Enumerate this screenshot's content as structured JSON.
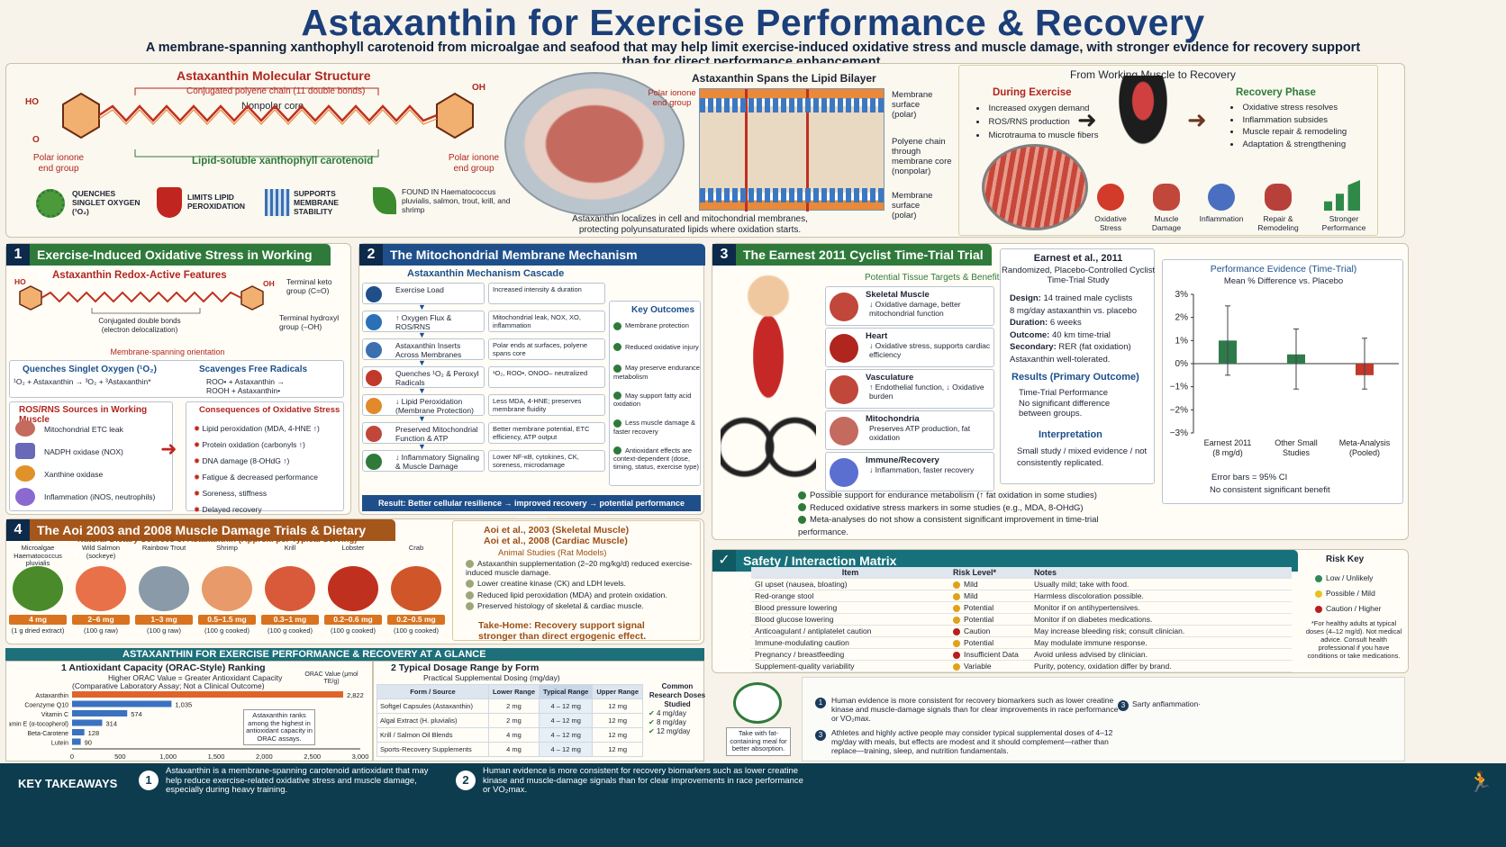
{
  "title": "Astaxanthin for Exercise Performance & Recovery",
  "subtitle": "A membrane-spanning xanthophyll carotenoid from microalgae and seafood that may help limit exercise-induced oxidative stress and muscle damage, with stronger evidence for recovery support than for direct performance enhancement.",
  "structure": {
    "heading": "Astaxanthin Molecular Structure",
    "polyene": "Conjugated polyene chain (11 double bonds)",
    "core": "Nonpolar core",
    "lipid": "Lipid-soluble xanthophyll carotenoid",
    "left_end": "Polar ionone end group",
    "right_end": "Polar ionone end group",
    "ho": "HO",
    "oh": "OH",
    "o": "O",
    "features": [
      {
        "label": "QUENCHES SINGLET OXYGEN (¹O₂)",
        "icon": "oxygen-icon"
      },
      {
        "label": "LIMITS LIPID PEROXIDATION",
        "icon": "shield-icon"
      },
      {
        "label": "SUPPORTS MEMBRANE STABILITY",
        "icon": "membrane-icon"
      },
      {
        "label": "FOUND IN Haematococcus pluvialis, salmon, trout, krill, and shrimp",
        "icon": "leaf-icon"
      }
    ]
  },
  "bilayer": {
    "heading": "Astaxanthin Spans the Lipid Bilayer",
    "end_group": "Polar ionone end group",
    "labels": [
      "Membrane surface (polar)",
      "Polyene chain through membrane core (nonpolar)",
      "Membrane surface (polar)"
    ],
    "caption": "Astaxanthin localizes in cell and mitochondrial membranes, protecting polyunsaturated lipids where oxidation starts."
  },
  "recovery_flow": {
    "heading": "From Working Muscle to Recovery",
    "during_title": "During Exercise",
    "during": [
      "Increased oxygen demand",
      "ROS/RNS production",
      "Microtrauma to muscle fibers"
    ],
    "phase_title": "Recovery Phase",
    "phase": [
      "Oxidative stress resolves",
      "Inflammation subsides",
      "Muscle repair & remodeling",
      "Adaptation & strengthening"
    ],
    "steps": [
      "Oxidative Stress",
      "Muscle Damage",
      "Inflammation",
      "Repair & Remodeling",
      "Stronger Performance"
    ]
  },
  "section1": {
    "num": "1",
    "title": "Exercise-Induced Oxidative Stress in Working Muscle",
    "features_title": "Astaxanthin Redox-Active Features",
    "terminal_keto": "Terminal keto group (C=O)",
    "terminal_hydroxyl": "Terminal hydroxyl group (–OH)",
    "conjugated": "Conjugated double bonds (electron delocalization)",
    "orientation": "Membrane-spanning orientation",
    "quench_title": "Quenches Singlet Oxygen (¹O₂)",
    "quench_eq": "¹O₂ + Astaxanthin → ³O₂ + ³Astaxanthin*",
    "scav_title": "Scavenges Free Radicals",
    "scav_eq1": "ROO• + Astaxanthin →",
    "scav_eq2": "ROOH + Astaxanthin•",
    "sources_title": "ROS/RNS Sources in Working Muscle",
    "sources": [
      "Mitochondrial ETC leak",
      "NADPH oxidase (NOX)",
      "Xanthine oxidase",
      "Inflammation (iNOS, neutrophils)"
    ],
    "conseq_title": "Consequences of Oxidative Stress",
    "conseq": [
      "Lipid peroxidation (MDA, 4-HNE ↑)",
      "Protein oxidation (carbonyls ↑)",
      "DNA damage (8-OHdG ↑)",
      "Fatigue & decreased performance",
      "Soreness, stiffness",
      "Delayed recovery"
    ]
  },
  "section2": {
    "num": "2",
    "title": "The Mitochondrial Membrane Mechanism",
    "cascade_title": "Astaxanthin Mechanism Cascade",
    "steps": [
      {
        "label": "Exercise Load",
        "detail": "Increased intensity & duration"
      },
      {
        "label": "↑ Oxygen Flux & ROS/RNS",
        "detail": "Mitochondrial leak, NOX, XO, inflammation"
      },
      {
        "label": "Astaxanthin Inserts Across Membranes",
        "detail": "Polar ends at surfaces, polyene spans core"
      },
      {
        "label": "Quenches ¹O₂ & Peroxyl Radicals",
        "detail": "¹O₂, ROO•, ONOO– neutralized"
      },
      {
        "label": "↓ Lipid Peroxidation (Membrane Protection)",
        "detail": "Less MDA, 4-HNE; preserves membrane fluidity"
      },
      {
        "label": "Preserved Mitochondrial Function & ATP",
        "detail": "Better membrane potential, ETC efficiency, ATP output"
      },
      {
        "label": "↓ Inflammatory Signaling & Muscle Damage",
        "detail": "Lower NF-κB, cytokines, CK, soreness, microdamage"
      }
    ],
    "outcomes_title": "Key Outcomes",
    "outcomes": [
      "Membrane protection",
      "Reduced oxidative injury",
      "May preserve endurance metabolism",
      "May support fatty acid oxidation",
      "Less muscle damage & faster recovery",
      "Antioxidant effects are context-dependent (dose, timing, status, exercise type)"
    ],
    "result": "Result: Better cellular resilience → improved recovery → potential performance support"
  },
  "section3": {
    "num": "3",
    "title": "The Earnest 2011 Cyclist Time-Trial Trial",
    "targets_title": "Potential Tissue Targets & Benefits",
    "targets": [
      {
        "name": "Skeletal Muscle",
        "desc": "↓ Oxidative damage, better mitochondrial function"
      },
      {
        "name": "Heart",
        "desc": "↓ Oxidative stress, supports cardiac efficiency"
      },
      {
        "name": "Vasculature",
        "desc": "↑ Endothelial function, ↓ Oxidative burden"
      },
      {
        "name": "Mitochondria",
        "desc": "Preserves ATP production, fat oxidation"
      },
      {
        "name": "Immune/Recovery",
        "desc": "↓ Inflammation, faster recovery"
      }
    ],
    "study_title": "Earnest et al., 2011",
    "study_sub": "Randomized, Placebo-Controlled Cyclist Time-Trial Study",
    "design": [
      {
        "k": "Design:",
        "v": "14 trained male cyclists"
      },
      {
        "k": "",
        "v": "8 mg/day astaxanthin vs. placebo"
      },
      {
        "k": "Duration:",
        "v": "6 weeks"
      },
      {
        "k": "Outcome:",
        "v": "40 km time-trial"
      },
      {
        "k": "Secondary:",
        "v": "RER (fat oxidation)"
      },
      {
        "k": "",
        "v": "Astaxanthin well-tolerated."
      }
    ],
    "results_title": "Results (Primary Outcome)",
    "results_sub": "Time-Trial Performance",
    "results_text": "No significant difference between groups.",
    "interp_title": "Interpretation",
    "interp_text": "Small study / mixed evidence / not consistently replicated.",
    "notes": [
      "Possible support for endurance metabolism (↑ fat oxidation in some studies)",
      "Reduced oxidative stress markers in some studies (e.g., MDA, 8-OHdG)",
      "Meta-analyses do not show a consistent significant improvement in time-trial performance."
    ]
  },
  "chart_data": {
    "type": "bar",
    "title": "Performance Evidence (Time-Trial)",
    "subtitle": "Mean % Difference vs. Placebo",
    "categories": [
      "Earnest 2011 (8 mg/d)",
      "Other Small Studies",
      "Meta-Analysis (Pooled)"
    ],
    "values": [
      1.0,
      0.4,
      -0.5
    ],
    "error": [
      [
        -0.5,
        2.5
      ],
      [
        -1.1,
        1.5
      ],
      [
        -1.1,
        1.1
      ]
    ],
    "colors": [
      "#2f7a4a",
      "#2f7a4a",
      "#c0392b"
    ],
    "ylim": [
      -3,
      3
    ],
    "yticks": [
      "3%",
      "2%",
      "1%",
      "0%",
      "−1%",
      "−2%",
      "−3%"
    ],
    "note1": "Error bars = 95% CI",
    "note2": "No consistent significant benefit"
  },
  "section4": {
    "num": "4",
    "title": "The Aoi 2003 and 2008 Muscle Damage Trials & Dietary Sources",
    "sources_title": "Natural Dietary Sources of Astaxanthin (Approx. per Typical Serving)",
    "foods": [
      {
        "name": "Microalgae Haematococcus pluvialis",
        "amount": "4 mg",
        "serving": "(1 g dried extract)"
      },
      {
        "name": "Wild Salmon (sockeye)",
        "amount": "2–6 mg",
        "serving": "(100 g raw)"
      },
      {
        "name": "Rainbow Trout",
        "amount": "1–3 mg",
        "serving": "(100 g raw)"
      },
      {
        "name": "Shrimp",
        "amount": "0.5–1.5 mg",
        "serving": "(100 g cooked)"
      },
      {
        "name": "Krill",
        "amount": "0.3–1 mg",
        "serving": "(100 g cooked)"
      },
      {
        "name": "Lobster",
        "amount": "0.2–0.6 mg",
        "serving": "(100 g cooked)"
      },
      {
        "name": "Crab",
        "amount": "0.2–0.5 mg",
        "serving": "(100 g cooked)"
      }
    ],
    "aoi1": "Aoi et al., 2003 (Skeletal Muscle)",
    "aoi2": "Aoi et al., 2008 (Cardiac Muscle)",
    "animal": "Animal Studies (Rat Models)",
    "findings": [
      "Astaxanthin supplementation (2–20 mg/kg/d) reduced exercise-induced muscle damage.",
      "Lower creatine kinase (CK) and LDH levels.",
      "Reduced lipid peroxidation (MDA) and protein oxidation.",
      "Preserved histology of skeletal & cardiac muscle."
    ],
    "takehome": "Take-Home: Recovery support signal stronger than direct ergogenic effect."
  },
  "safety": {
    "title": "Safety / Interaction Matrix",
    "cols": [
      "Item",
      "Risk Level*",
      "Notes"
    ],
    "rows": [
      {
        "item": "GI upset (nausea, bloating)",
        "risk": "Mild",
        "color": "#e0a21a",
        "note": "Usually mild; take with food."
      },
      {
        "item": "Red-orange stool",
        "risk": "Mild",
        "color": "#e0a21a",
        "note": "Harmless discoloration possible."
      },
      {
        "item": "Blood pressure lowering",
        "risk": "Potential",
        "color": "#e0a21a",
        "note": "Monitor if on antihypertensives."
      },
      {
        "item": "Blood glucose lowering",
        "risk": "Potential",
        "color": "#e0a21a",
        "note": "Monitor if on diabetes medications."
      },
      {
        "item": "Anticoagulant / antiplatelet caution",
        "risk": "Caution",
        "color": "#b81e1e",
        "note": "May increase bleeding risk; consult clinician."
      },
      {
        "item": "Immune-modulating caution",
        "risk": "Potential",
        "color": "#e0a21a",
        "note": "May modulate immune response."
      },
      {
        "item": "Pregnancy / breastfeeding",
        "risk": "Insufficient Data",
        "color": "#b81e1e",
        "note": "Avoid unless advised by clinician."
      },
      {
        "item": "Supplement-quality variability",
        "risk": "Variable",
        "color": "#e0a21a",
        "note": "Purity, potency, oxidation differ by brand."
      }
    ],
    "key_title": "Risk Key",
    "key": [
      {
        "label": "Low / Unlikely",
        "color": "#2f8a5a"
      },
      {
        "label": "Possible / Mild",
        "color": "#e8c21a"
      },
      {
        "label": "Caution / Higher",
        "color": "#b81e1e"
      }
    ],
    "footnote": "*For healthy adults at typical doses (4–12 mg/d). Not medical advice. Consult health professional if you have conditions or take medications."
  },
  "glance": {
    "title": "ASTAXANTHIN FOR EXERCISE PERFORMANCE & RECOVERY AT A GLANCE",
    "orac_title": "1  Antioxidant Capacity (ORAC-Style) Ranking",
    "orac_sub1": "Higher ORAC Value = Greater Antioxidant Capacity",
    "orac_sub2": "(Comparative Laboratory Assay; Not a Clinical Outcome)",
    "orac_value_label": "ORAC Value (μmol TE/g)",
    "orac": [
      {
        "name": "Astaxanthin",
        "value": 2822
      },
      {
        "name": "Coenzyme Q10",
        "value": 1035
      },
      {
        "name": "Vitamin C",
        "value": 574
      },
      {
        "name": "Vitamin E (α-tocopherol)",
        "value": 314
      },
      {
        "name": "Beta-Carotene",
        "value": 128
      },
      {
        "name": "Lutein",
        "value": 90
      }
    ],
    "orac_ticks": [
      "0",
      "500",
      "1,000",
      "1,500",
      "2,000",
      "2,500",
      "3,000"
    ],
    "orac_note": "Astaxanthin ranks among the highest in antioxidant capacity in ORAC assays.",
    "dose_title": "2  Typical Dosage Range by Form",
    "dose_sub": "Practical Supplemental Dosing (mg/day)",
    "dose_cols": [
      "Form / Source",
      "Lower Range",
      "Typical Range",
      "Upper Range"
    ],
    "dose_rows": [
      {
        "form": "Softgel Capsules (Astaxanthin)",
        "low": "2 mg",
        "typ": "4 – 12 mg",
        "up": "12 mg"
      },
      {
        "form": "Algal Extract (H. pluvialis)",
        "low": "2 mg",
        "typ": "4 – 12 mg",
        "up": "12 mg"
      },
      {
        "form": "Krill / Salmon Oil Blends",
        "low": "4 mg",
        "typ": "4 – 12 mg",
        "up": "12 mg"
      },
      {
        "form": "Sports-Recovery Supplements",
        "low": "4 mg",
        "typ": "4 – 12 mg",
        "up": "12 mg"
      }
    ],
    "common_title": "Common Research Doses Studied",
    "common": [
      "4 mg/day",
      "8 mg/day",
      "12 mg/day"
    ],
    "meal": "Take with fat-containing meal for better absorption.",
    "points": [
      {
        "num": "1",
        "text": "Human evidence is more consistent for recovery biomarkers such as lower creatine kinase and muscle-damage signals than for clear improvements in race performance or VO₂max."
      },
      {
        "num": "3",
        "text": "Athletes and highly active people may consider typical supplemental doses of 4–12 mg/day with meals, but effects are modest and it should complement—rather than replace—training, sleep, and nutrition fundamentals."
      },
      {
        "num": "3",
        "text": "Sarty anflammation·"
      }
    ]
  },
  "footer": {
    "label": "KEY TAKEAWAYS",
    "items": [
      {
        "num": "1",
        "text": "Astaxanthin is a membrane-spanning carotenoid antioxidant that may help reduce exercise-related oxidative stress and muscle damage, especially during heavy training."
      },
      {
        "num": "2",
        "text": "Human evidence is more consistent for recovery biomarkers such as lower creatine kinase and muscle-damage signals than for clear improvements in race performance or VO₂max."
      }
    ]
  }
}
